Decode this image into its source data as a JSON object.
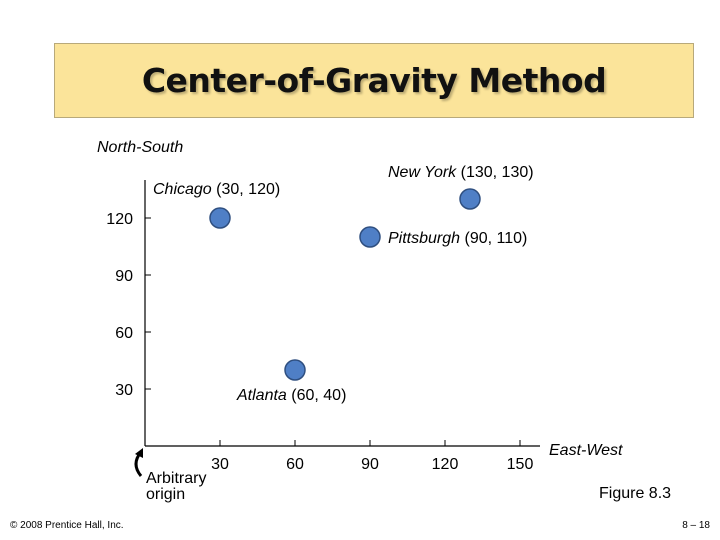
{
  "title": "Center-of-Gravity Method",
  "footer_left": "© 2008 Prentice Hall, Inc.",
  "footer_right": "8 – 18",
  "figure_caption": "Figure 8.3",
  "chart_data": {
    "type": "scatter",
    "xlabel": "East-West",
    "ylabel": "North-South",
    "xlim": [
      0,
      160
    ],
    "ylim": [
      0,
      140
    ],
    "x_ticks": [
      30,
      60,
      90,
      120,
      150
    ],
    "y_ticks": [
      30,
      60,
      90,
      120
    ],
    "origin_annotation": [
      "Arbitrary",
      "origin"
    ],
    "marker_color": "#4f7fc6",
    "points": [
      {
        "name": "Chicago",
        "coords": "(30, 120)",
        "x": 30,
        "y": 120
      },
      {
        "name": "New York",
        "coords": "(130, 130)",
        "x": 130,
        "y": 130
      },
      {
        "name": "Pittsburgh",
        "coords": "(90, 110)",
        "x": 90,
        "y": 110
      },
      {
        "name": "Atlanta",
        "coords": "(60, 40)",
        "x": 60,
        "y": 40
      }
    ]
  }
}
